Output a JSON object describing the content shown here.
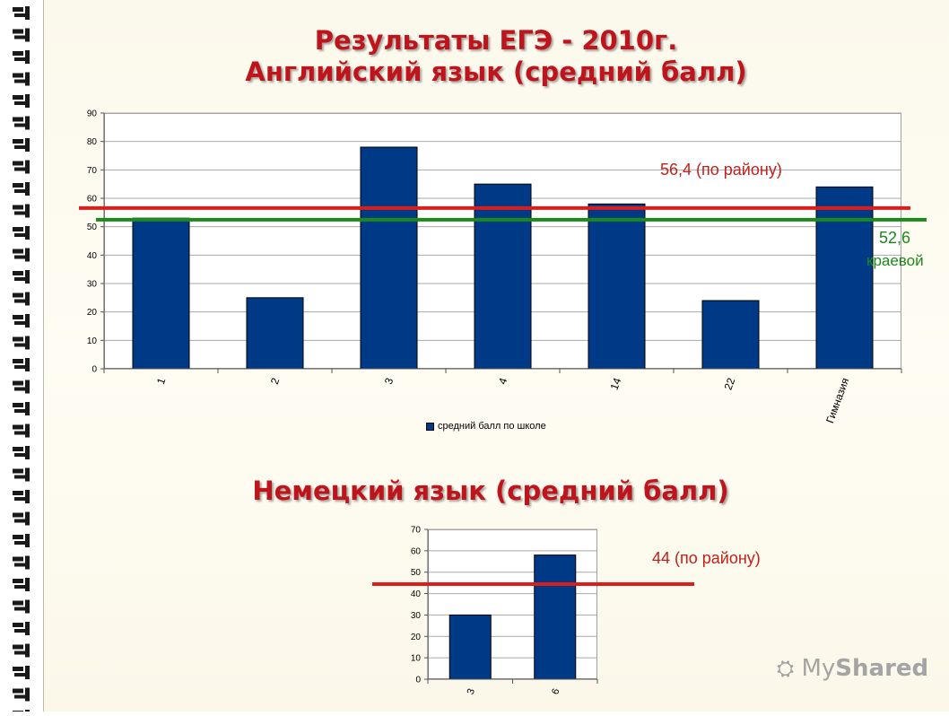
{
  "page": {
    "title_line1": "Результаты ЕГЭ - 2010г.",
    "title_line2": "Английский язык  (средний балл)",
    "title_german": "Немецкий язык  (средний балл)",
    "logo_my": "My",
    "logo_shared": "Shared"
  },
  "chart_data": [
    {
      "type": "bar",
      "categories": [
        "1",
        "2",
        "3",
        "4",
        "14",
        "22",
        "Гимназия"
      ],
      "series": [
        {
          "name": "средний балл по школе",
          "values": [
            53,
            25,
            78,
            65,
            58,
            24,
            64
          ]
        }
      ],
      "ylim": [
        0,
        90
      ],
      "yticks": [
        0,
        10,
        20,
        30,
        40,
        50,
        60,
        70,
        80,
        90
      ],
      "grid": true,
      "legend": "bottom",
      "bar_color": "#003a86",
      "reference_lines": [
        {
          "value": 56.4,
          "label": "56,4 (по району)",
          "color": "#dd1c1c"
        },
        {
          "value": 52.6,
          "label_value": "52,6",
          "label_text": "краевой",
          "color": "#1a8a1a"
        }
      ]
    },
    {
      "type": "bar",
      "categories": [
        "3",
        "6"
      ],
      "series": [
        {
          "values": [
            30,
            58
          ]
        }
      ],
      "ylim": [
        0,
        70
      ],
      "yticks": [
        0,
        10,
        20,
        30,
        40,
        50,
        60,
        70
      ],
      "grid": true,
      "bar_color": "#003a86",
      "reference_lines": [
        {
          "value": 44,
          "label": "44 (по району)",
          "color": "#dd1c1c"
        }
      ]
    }
  ]
}
